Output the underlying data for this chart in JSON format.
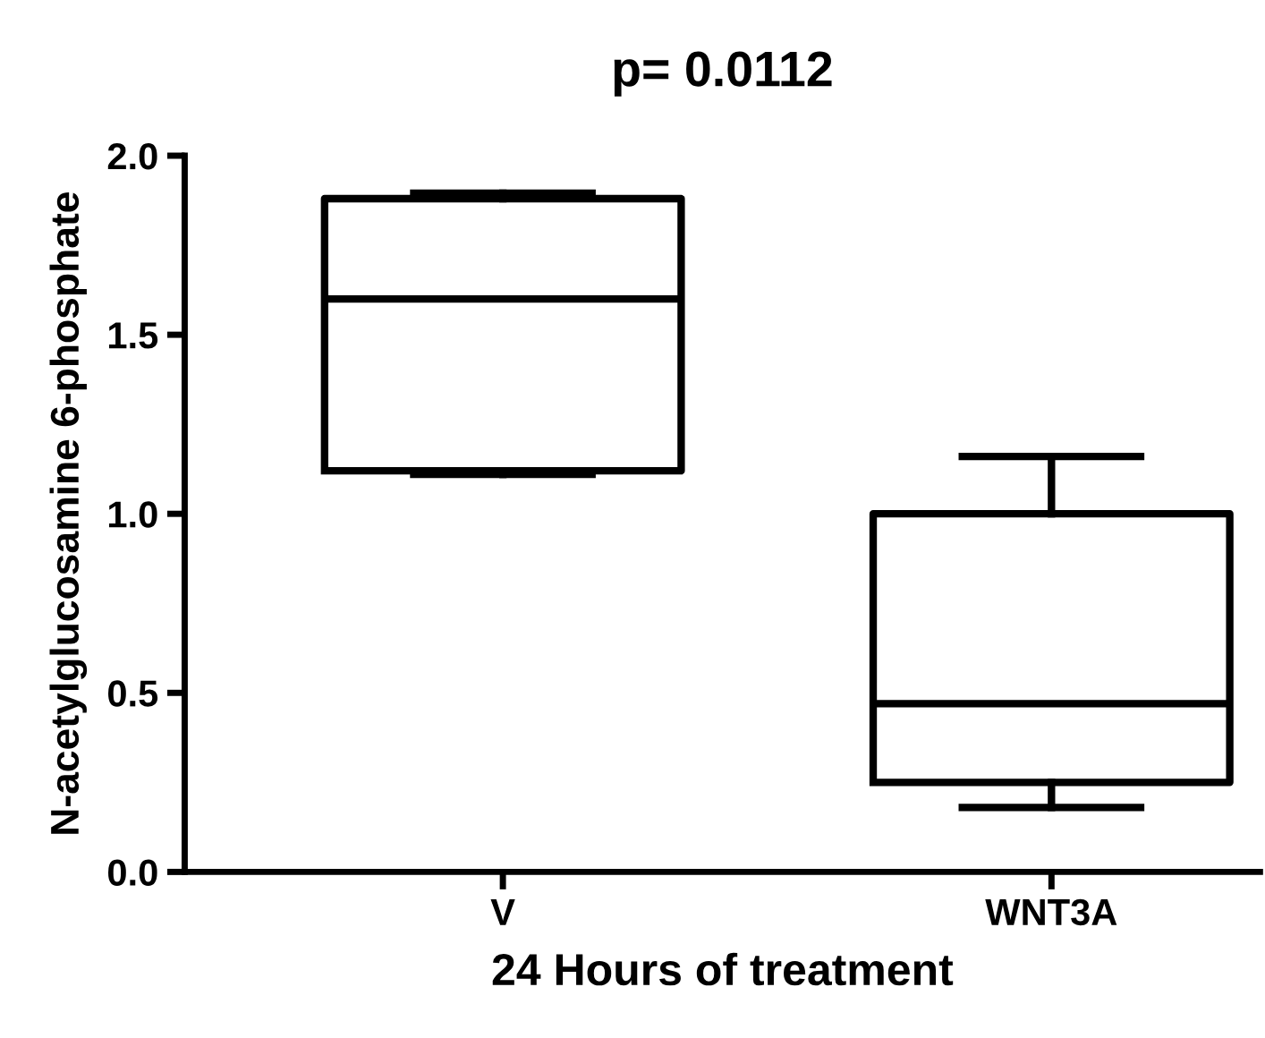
{
  "chart_data": {
    "type": "box",
    "title": "p= 0.0112",
    "xlabel": "24 Hours of treatment",
    "ylabel": "N-acetylglucosamine 6-phosphate",
    "categories": [
      "V",
      "WNT3A"
    ],
    "boxes": [
      {
        "low": 1.11,
        "q1": 1.12,
        "median": 1.6,
        "q3": 1.88,
        "high": 1.895
      },
      {
        "low": 0.18,
        "q1": 0.25,
        "median": 0.47,
        "q3": 1.0,
        "high": 1.16
      }
    ],
    "ylim": [
      0,
      2
    ],
    "yticks": [
      {
        "value": 0,
        "label": "0.0"
      },
      {
        "value": 0.5,
        "label": "0.5"
      },
      {
        "value": 1,
        "label": "1.0"
      },
      {
        "value": 1.5,
        "label": "1.5"
      },
      {
        "value": 2,
        "label": "2.0"
      }
    ],
    "color": "#000000",
    "grid": false
  }
}
